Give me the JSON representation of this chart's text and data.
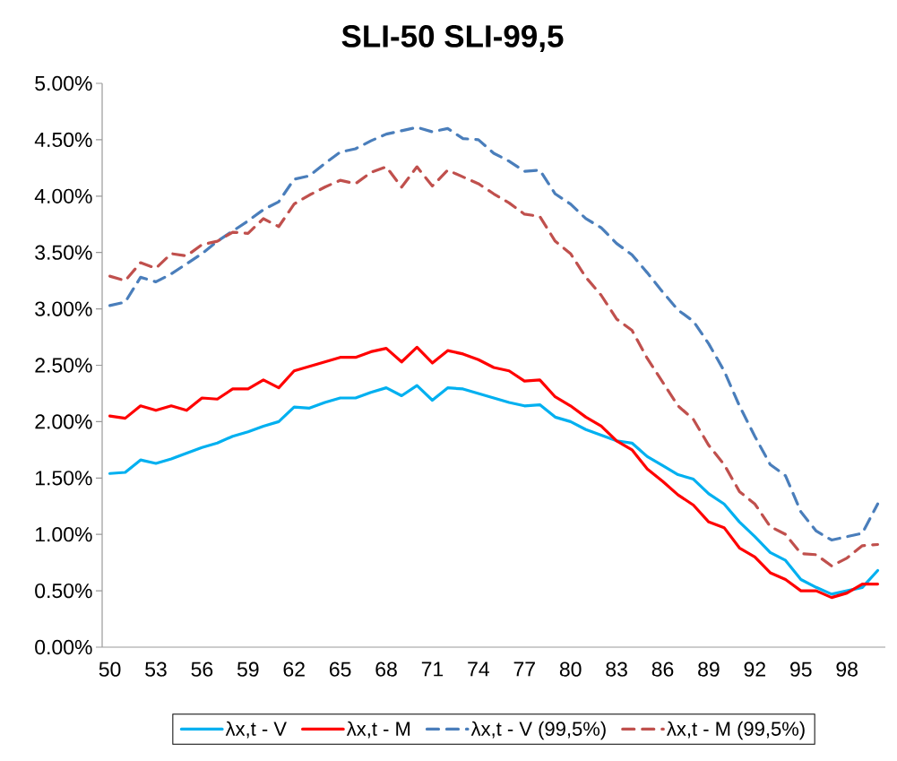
{
  "chart_data": {
    "type": "line",
    "title": "SLI-50      SLI-99,5",
    "categories": [
      "50",
      null,
      null,
      "53",
      null,
      null,
      "56",
      null,
      null,
      "59",
      null,
      null,
      "62",
      null,
      null,
      "65",
      null,
      null,
      "68",
      null,
      null,
      "71",
      null,
      null,
      "74",
      null,
      null,
      "77",
      null,
      null,
      "80",
      null,
      null,
      "83",
      null,
      null,
      "86",
      null,
      null,
      "89",
      null,
      null,
      "92",
      null,
      null,
      "95",
      null,
      null,
      "98",
      null,
      null
    ],
    "ylim": [
      0,
      5
    ],
    "yticks": [
      {
        "value": 0,
        "label": "0.00%"
      },
      {
        "value": 0.5,
        "label": "0.50%"
      },
      {
        "value": 1,
        "label": "1.00%"
      },
      {
        "value": 1.5,
        "label": "1.50%"
      },
      {
        "value": 2,
        "label": "2.00%"
      },
      {
        "value": 2.5,
        "label": "2.50%"
      },
      {
        "value": 3,
        "label": "3.00%"
      },
      {
        "value": 3.5,
        "label": "3.50%"
      },
      {
        "value": 4,
        "label": "4.00%"
      },
      {
        "value": 4.5,
        "label": "4.50%"
      },
      {
        "value": 5,
        "label": "5.00%"
      }
    ],
    "legend": "bottom",
    "grid": false,
    "series": [
      {
        "name": "λx,t - V",
        "color": "#00b0f0",
        "line_style": "solid",
        "values": [
          1.54,
          1.55,
          1.66,
          1.63,
          1.67,
          1.72,
          1.77,
          1.81,
          1.87,
          1.91,
          1.96,
          2.0,
          2.13,
          2.12,
          2.17,
          2.21,
          2.21,
          2.26,
          2.3,
          2.23,
          2.32,
          2.19,
          2.3,
          2.29,
          2.25,
          2.21,
          2.17,
          2.14,
          2.15,
          2.04,
          2.0,
          1.93,
          1.88,
          1.83,
          1.81,
          1.69,
          1.61,
          1.53,
          1.49,
          1.36,
          1.27,
          1.11,
          0.98,
          0.84,
          0.77,
          0.6,
          0.53,
          0.47,
          0.5,
          0.53,
          0.68
        ]
      },
      {
        "name": "λx,t - M",
        "color": "#ff0000",
        "line_style": "solid",
        "values": [
          2.05,
          2.03,
          2.14,
          2.1,
          2.14,
          2.1,
          2.21,
          2.2,
          2.29,
          2.29,
          2.37,
          2.3,
          2.45,
          2.49,
          2.53,
          2.57,
          2.57,
          2.62,
          2.65,
          2.53,
          2.66,
          2.52,
          2.63,
          2.6,
          2.55,
          2.48,
          2.45,
          2.36,
          2.37,
          2.22,
          2.14,
          2.04,
          1.96,
          1.83,
          1.75,
          1.58,
          1.47,
          1.35,
          1.26,
          1.11,
          1.06,
          0.88,
          0.8,
          0.66,
          0.6,
          0.5,
          0.5,
          0.44,
          0.48,
          0.56,
          0.56
        ]
      },
      {
        "name": "λx,t - V (99,5%)",
        "color": "#4a7ebb",
        "line_style": "dashed",
        "values": [
          3.03,
          3.06,
          3.28,
          3.24,
          3.31,
          3.4,
          3.49,
          3.6,
          3.69,
          3.78,
          3.88,
          3.95,
          4.15,
          4.18,
          4.29,
          4.39,
          4.42,
          4.49,
          4.55,
          4.58,
          4.61,
          4.57,
          4.6,
          4.51,
          4.5,
          4.38,
          4.31,
          4.22,
          4.23,
          4.02,
          3.93,
          3.8,
          3.72,
          3.58,
          3.48,
          3.32,
          3.15,
          2.99,
          2.89,
          2.69,
          2.45,
          2.14,
          1.87,
          1.62,
          1.52,
          1.2,
          1.03,
          0.95,
          0.98,
          1.01,
          1.27
        ]
      },
      {
        "name": "λx,t - M (99,5%)",
        "color": "#c0504d",
        "line_style": "dashed",
        "values": [
          3.29,
          3.25,
          3.41,
          3.36,
          3.49,
          3.47,
          3.57,
          3.6,
          3.68,
          3.67,
          3.8,
          3.73,
          3.93,
          4.01,
          4.08,
          4.14,
          4.11,
          4.21,
          4.26,
          4.08,
          4.26,
          4.09,
          4.23,
          4.17,
          4.11,
          4.02,
          3.94,
          3.84,
          3.82,
          3.6,
          3.49,
          3.28,
          3.12,
          2.91,
          2.81,
          2.56,
          2.35,
          2.14,
          2.02,
          1.79,
          1.62,
          1.38,
          1.27,
          1.07,
          1.0,
          0.83,
          0.82,
          0.72,
          0.79,
          0.9,
          0.91
        ]
      }
    ]
  }
}
